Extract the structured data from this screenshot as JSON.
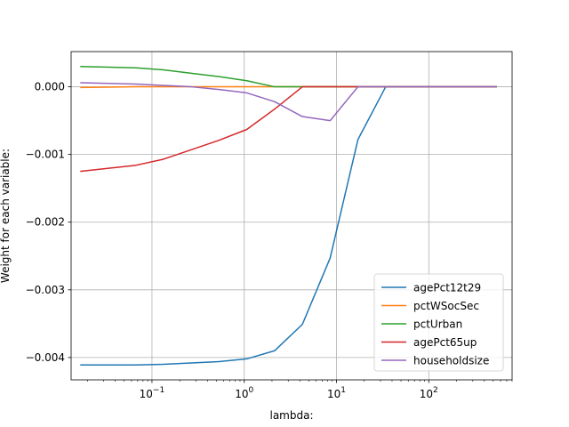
{
  "chart_data": {
    "type": "line",
    "xscale": "log",
    "xlabel": "lambda:",
    "ylabel": "Weight for each variable:",
    "xlim": [
      0.0133,
      800
    ],
    "ylim": [
      -0.00433,
      0.00052
    ],
    "xticks": [
      {
        "value": 0.1,
        "base": "10",
        "exp": "−1"
      },
      {
        "value": 1,
        "base": "10",
        "exp": "0"
      },
      {
        "value": 10,
        "base": "10",
        "exp": "1"
      },
      {
        "value": 100,
        "base": "10",
        "exp": "2"
      }
    ],
    "yticks": [
      {
        "value": 0.0,
        "label": "0.000"
      },
      {
        "value": -0.001,
        "label": "−0.001"
      },
      {
        "value": -0.002,
        "label": "−0.002"
      },
      {
        "value": -0.003,
        "label": "−0.003"
      },
      {
        "value": -0.004,
        "label": "−0.004"
      }
    ],
    "grid": true,
    "legend_position": "lower right",
    "x": [
      0.0167,
      0.0667,
      0.133,
      0.267,
      0.533,
      1.067,
      2.133,
      4.267,
      8.533,
      17.07,
      34.13,
      68.27,
      136.5,
      273.1,
      546.1
    ],
    "series": [
      {
        "name": "agePct12t29",
        "color": "#1f77b4",
        "values": [
          -0.00411,
          -0.00411,
          -0.0041,
          -0.00408,
          -0.00406,
          -0.00402,
          -0.0039,
          -0.00351,
          -0.00253,
          -0.00078,
          0.0,
          0.0,
          0.0,
          0.0,
          0.0
        ]
      },
      {
        "name": "pctWSocSec",
        "color": "#ff7f0e",
        "values": [
          -1e-05,
          0.0,
          0.0,
          0.0,
          0.0,
          0.0,
          0.0,
          0.0,
          0.0,
          0.0,
          0.0,
          0.0,
          0.0,
          0.0,
          0.0
        ]
      },
      {
        "name": "pctUrban",
        "color": "#2ca02c",
        "values": [
          0.0003,
          0.00028,
          0.00025,
          0.0002,
          0.00015,
          9e-05,
          0.0,
          0.0,
          0.0,
          0.0,
          0.0,
          0.0,
          0.0,
          0.0,
          0.0
        ]
      },
      {
        "name": "agePct65up",
        "color": "#d62728",
        "values": [
          -0.00125,
          -0.00116,
          -0.00107,
          -0.00093,
          -0.00079,
          -0.00063,
          -0.00033,
          0.0,
          0.0,
          0.0,
          0.0,
          0.0,
          0.0,
          0.0,
          0.0
        ]
      },
      {
        "name": "householdsize",
        "color": "#9467bd",
        "values": [
          6e-05,
          4e-05,
          2e-05,
          0.0,
          -4e-05,
          -9e-05,
          -0.00022,
          -0.00044,
          -0.0005,
          0.0,
          0.0,
          0.0,
          0.0,
          0.0,
          0.0
        ]
      }
    ]
  }
}
